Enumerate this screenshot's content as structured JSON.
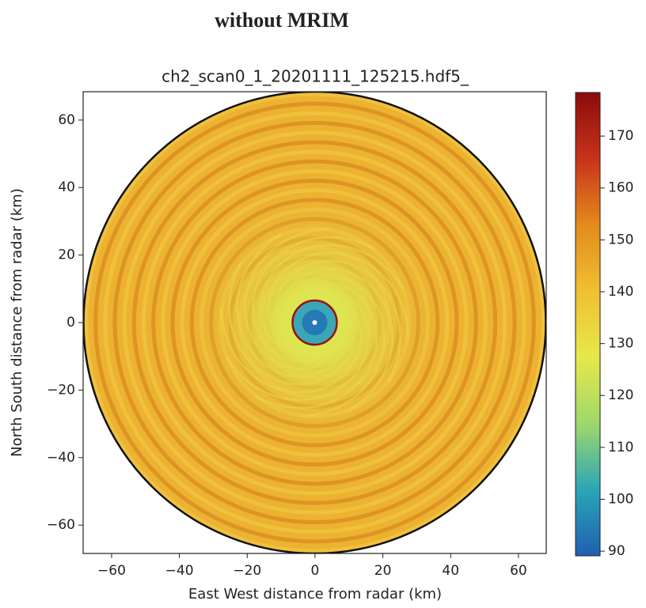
{
  "heading": "without MRIM",
  "chart_data": {
    "type": "radar-image",
    "title": "ch2_scan0_1_20201111_125215.hdf5_",
    "xlabel": "East West distance from radar (km)",
    "ylabel": "North South distance from radar (km)",
    "xlim": [
      -68.4,
      68.2
    ],
    "ylim": [
      -68.4,
      68.4
    ],
    "xticks": [
      {
        "value": -60,
        "label": "−60"
      },
      {
        "value": -40,
        "label": "−40"
      },
      {
        "value": -20,
        "label": "−20"
      },
      0,
      20,
      40,
      60
    ],
    "yticks": [
      {
        "value": -60,
        "label": "−60"
      },
      {
        "value": -40,
        "label": "−40"
      },
      {
        "value": -20,
        "label": "−20"
      },
      0,
      20,
      40,
      60
    ],
    "clim": [
      89.1,
      178.4
    ],
    "cticks": [
      90,
      100,
      110,
      120,
      130,
      140,
      150,
      160,
      170
    ],
    "colormap": [
      "#1f5fb0",
      "#2aa6b8",
      "#9fd86a",
      "#e6e84a",
      "#f0c030",
      "#e48a1c",
      "#c8321a",
      "#8a0c0c"
    ]
  }
}
